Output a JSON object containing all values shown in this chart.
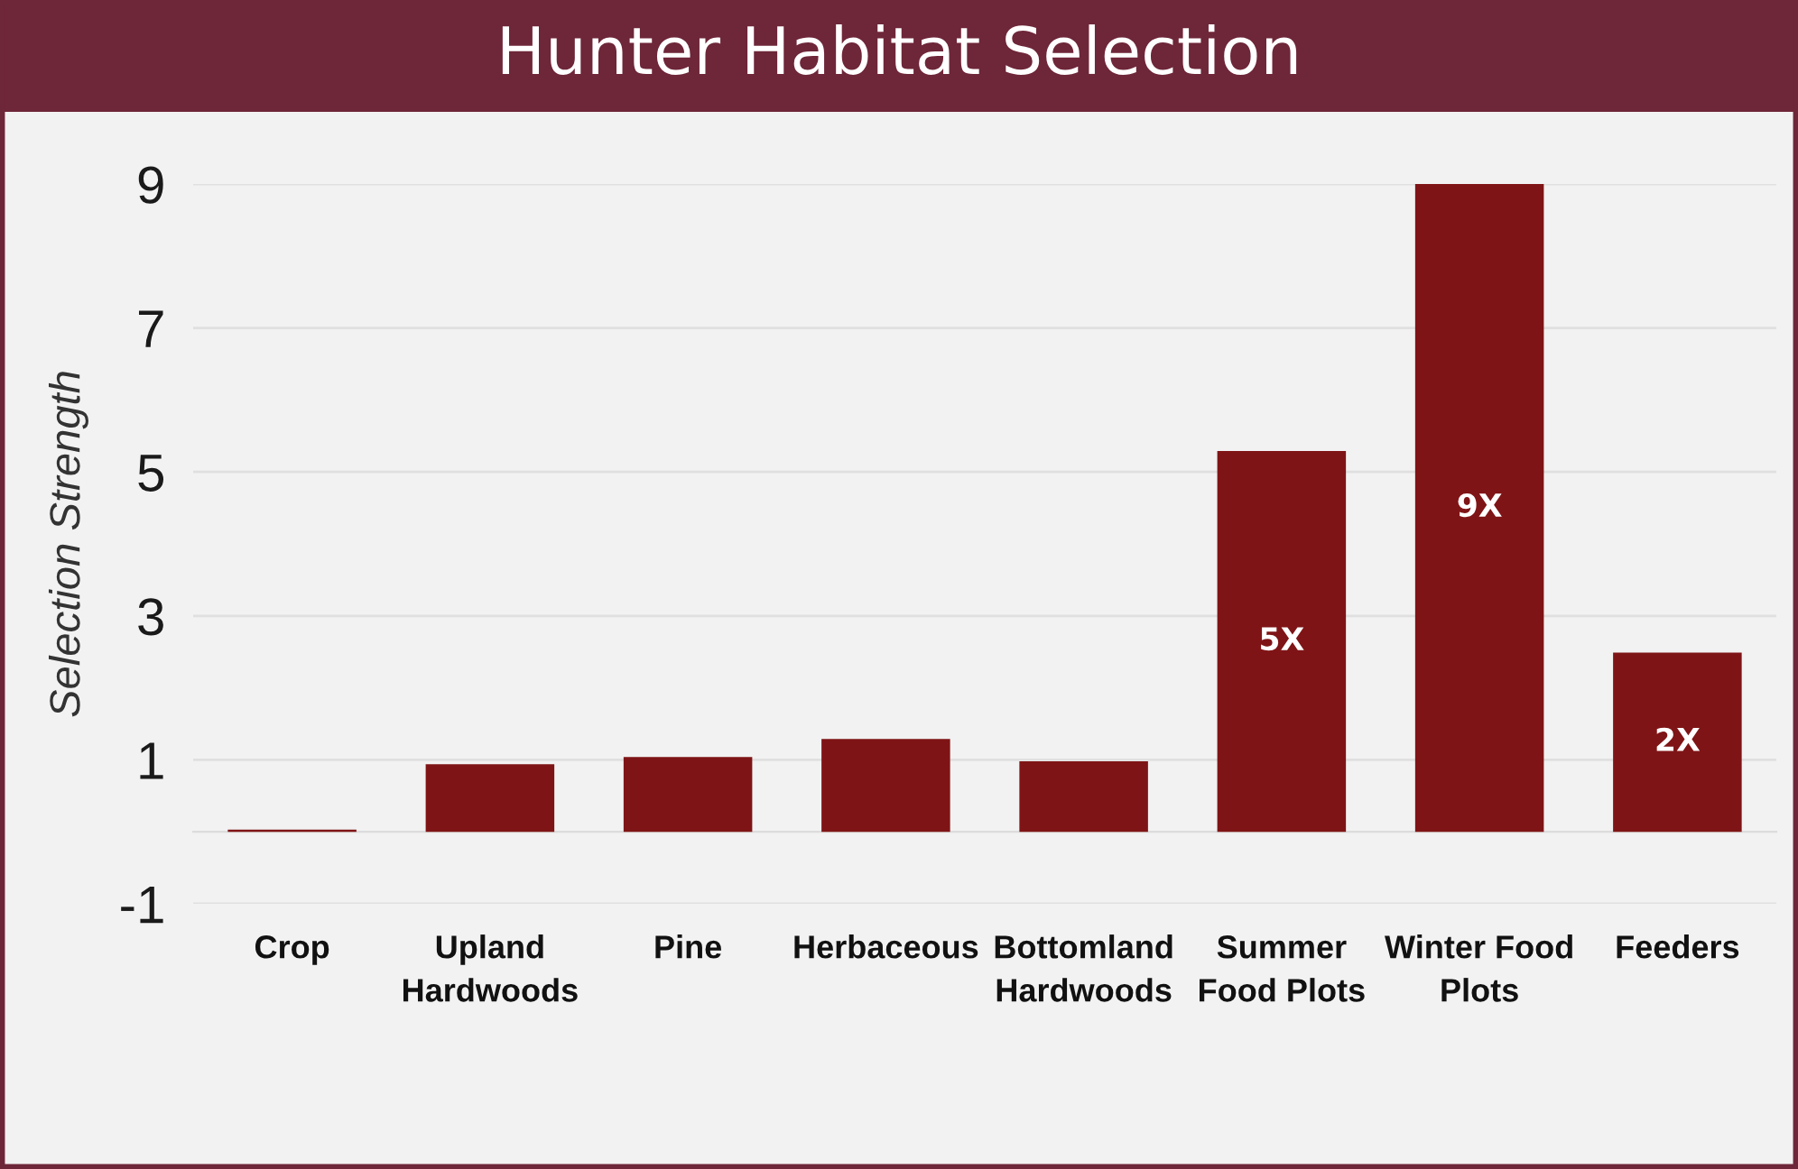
{
  "chart_data": {
    "type": "bar",
    "title": "Hunter Habitat Selection",
    "ylabel": "Selection Strength",
    "categories": [
      "Crop",
      "Upland\nHardwoods",
      "Pine",
      "Herbaceous",
      "Bottomland\nHardwoods",
      "Summer\nFood Plots",
      "Winter Food\nPlots",
      "Feeders"
    ],
    "values": [
      0.03,
      0.94,
      1.04,
      1.29,
      0.98,
      5.29,
      9.0,
      2.49
    ],
    "color": "#7f1416",
    "value_labels": [
      null,
      null,
      null,
      null,
      null,
      "5X",
      "9X",
      "2X"
    ],
    "ylim": [
      -1,
      9
    ],
    "yticks": [
      -1,
      1,
      3,
      5,
      7,
      9
    ],
    "grid": "y"
  }
}
